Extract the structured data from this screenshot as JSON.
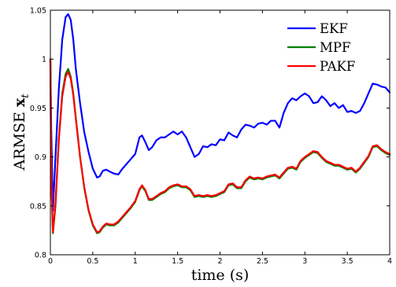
{
  "chart_data": {
    "type": "line",
    "xlabel": "time (s)",
    "ylabel_text": "ARMSE ",
    "ylabel_bold": "x",
    "ylabel_sub": "t",
    "xlim": [
      0,
      4
    ],
    "ylim": [
      0.8,
      1.05
    ],
    "xticks": [
      "0",
      "0.5",
      "1",
      "1.5",
      "2",
      "2.5",
      "3",
      "3.5",
      "4"
    ],
    "xtick_values": [
      0,
      0.5,
      1,
      1.5,
      2,
      2.5,
      3,
      3.5,
      4
    ],
    "yticks": [
      "0.8",
      "0.85",
      "0.9",
      "0.95",
      "1",
      "1.05"
    ],
    "ytick_values": [
      0.8,
      0.85,
      0.9,
      0.95,
      1,
      1.05
    ],
    "grid": false,
    "legend_position": "top-right",
    "series": [
      {
        "name": "EKF",
        "color": "#0000ff",
        "x": [
          0,
          0.01,
          0.03,
          0.06,
          0.1,
          0.14,
          0.18,
          0.21,
          0.24,
          0.27,
          0.3,
          0.35,
          0.4,
          0.45,
          0.5,
          0.55,
          0.58,
          0.62,
          0.66,
          0.7,
          0.75,
          0.8,
          0.85,
          0.9,
          0.95,
          1.0,
          1.05,
          1.08,
          1.12,
          1.16,
          1.2,
          1.25,
          1.3,
          1.35,
          1.4,
          1.45,
          1.5,
          1.55,
          1.6,
          1.65,
          1.7,
          1.75,
          1.8,
          1.85,
          1.9,
          1.95,
          2.0,
          2.05,
          2.1,
          2.15,
          2.2,
          2.25,
          2.3,
          2.35,
          2.4,
          2.45,
          2.5,
          2.55,
          2.6,
          2.65,
          2.7,
          2.75,
          2.8,
          2.85,
          2.9,
          2.95,
          3.0,
          3.05,
          3.1,
          3.15,
          3.2,
          3.25,
          3.3,
          3.35,
          3.4,
          3.45,
          3.5,
          3.55,
          3.6,
          3.65,
          3.7,
          3.75,
          3.8,
          3.85,
          3.9,
          3.95,
          4.0
        ],
        "values": [
          1.0,
          0.93,
          0.845,
          0.9,
          0.97,
          1.02,
          1.043,
          1.046,
          1.04,
          1.02,
          0.99,
          0.955,
          0.925,
          0.905,
          0.888,
          0.879,
          0.88,
          0.886,
          0.887,
          0.885,
          0.883,
          0.882,
          0.888,
          0.893,
          0.898,
          0.903,
          0.92,
          0.922,
          0.915,
          0.907,
          0.91,
          0.917,
          0.92,
          0.92,
          0.923,
          0.926,
          0.923,
          0.926,
          0.92,
          0.91,
          0.9,
          0.903,
          0.911,
          0.91,
          0.913,
          0.912,
          0.918,
          0.917,
          0.925,
          0.922,
          0.92,
          0.928,
          0.933,
          0.932,
          0.93,
          0.934,
          0.935,
          0.933,
          0.937,
          0.937,
          0.93,
          0.945,
          0.955,
          0.96,
          0.958,
          0.962,
          0.965,
          0.962,
          0.955,
          0.956,
          0.962,
          0.958,
          0.952,
          0.955,
          0.95,
          0.953,
          0.946,
          0.947,
          0.945,
          0.947,
          0.955,
          0.965,
          0.975,
          0.974,
          0.972,
          0.971,
          0.966
        ]
      },
      {
        "name": "MPF",
        "color": "#008000",
        "x": [
          0,
          0.01,
          0.03,
          0.06,
          0.1,
          0.14,
          0.18,
          0.21,
          0.24,
          0.27,
          0.3,
          0.35,
          0.4,
          0.45,
          0.5,
          0.55,
          0.58,
          0.62,
          0.66,
          0.7,
          0.75,
          0.8,
          0.85,
          0.9,
          0.95,
          1.0,
          1.05,
          1.08,
          1.12,
          1.16,
          1.2,
          1.25,
          1.3,
          1.35,
          1.4,
          1.45,
          1.5,
          1.55,
          1.6,
          1.65,
          1.7,
          1.75,
          1.8,
          1.85,
          1.9,
          1.95,
          2.0,
          2.05,
          2.1,
          2.15,
          2.2,
          2.25,
          2.3,
          2.35,
          2.4,
          2.45,
          2.5,
          2.55,
          2.6,
          2.65,
          2.7,
          2.75,
          2.8,
          2.85,
          2.9,
          2.95,
          3.0,
          3.05,
          3.1,
          3.15,
          3.2,
          3.25,
          3.3,
          3.35,
          3.4,
          3.45,
          3.5,
          3.55,
          3.6,
          3.65,
          3.7,
          3.75,
          3.8,
          3.85,
          3.9,
          3.95,
          4.0
        ],
        "values": [
          1.0,
          0.88,
          0.822,
          0.85,
          0.92,
          0.965,
          0.985,
          0.99,
          0.982,
          0.965,
          0.94,
          0.9,
          0.868,
          0.845,
          0.83,
          0.822,
          0.823,
          0.828,
          0.831,
          0.83,
          0.83,
          0.833,
          0.838,
          0.843,
          0.848,
          0.854,
          0.866,
          0.87,
          0.865,
          0.856,
          0.856,
          0.859,
          0.862,
          0.864,
          0.868,
          0.87,
          0.871,
          0.869,
          0.869,
          0.866,
          0.859,
          0.86,
          0.859,
          0.86,
          0.859,
          0.86,
          0.862,
          0.864,
          0.871,
          0.872,
          0.868,
          0.868,
          0.875,
          0.879,
          0.877,
          0.878,
          0.877,
          0.879,
          0.88,
          0.881,
          0.878,
          0.883,
          0.888,
          0.889,
          0.887,
          0.895,
          0.899,
          0.902,
          0.905,
          0.904,
          0.899,
          0.895,
          0.893,
          0.891,
          0.891,
          0.889,
          0.887,
          0.888,
          0.884,
          0.888,
          0.894,
          0.9,
          0.91,
          0.911,
          0.907,
          0.904,
          0.902
        ]
      },
      {
        "name": "PAKF",
        "color": "#ff0000",
        "x": [
          0,
          0.01,
          0.03,
          0.06,
          0.1,
          0.14,
          0.18,
          0.21,
          0.24,
          0.27,
          0.3,
          0.35,
          0.4,
          0.45,
          0.5,
          0.55,
          0.58,
          0.62,
          0.66,
          0.7,
          0.75,
          0.8,
          0.85,
          0.9,
          0.95,
          1.0,
          1.05,
          1.08,
          1.12,
          1.16,
          1.2,
          1.25,
          1.3,
          1.35,
          1.4,
          1.45,
          1.5,
          1.55,
          1.6,
          1.65,
          1.7,
          1.75,
          1.8,
          1.85,
          1.9,
          1.95,
          2.0,
          2.05,
          2.1,
          2.15,
          2.2,
          2.25,
          2.3,
          2.35,
          2.4,
          2.45,
          2.5,
          2.55,
          2.6,
          2.65,
          2.7,
          2.75,
          2.8,
          2.85,
          2.9,
          2.95,
          3.0,
          3.05,
          3.1,
          3.15,
          3.2,
          3.25,
          3.3,
          3.35,
          3.4,
          3.45,
          3.5,
          3.55,
          3.6,
          3.65,
          3.7,
          3.75,
          3.8,
          3.85,
          3.9,
          3.95,
          4.0
        ],
        "values": [
          1.0,
          0.88,
          0.823,
          0.852,
          0.918,
          0.962,
          0.982,
          0.987,
          0.98,
          0.963,
          0.939,
          0.9,
          0.869,
          0.846,
          0.831,
          0.823,
          0.824,
          0.829,
          0.832,
          0.831,
          0.831,
          0.834,
          0.839,
          0.844,
          0.849,
          0.855,
          0.867,
          0.871,
          0.866,
          0.857,
          0.857,
          0.86,
          0.863,
          0.865,
          0.869,
          0.871,
          0.872,
          0.87,
          0.87,
          0.867,
          0.86,
          0.861,
          0.86,
          0.861,
          0.86,
          0.861,
          0.863,
          0.865,
          0.872,
          0.873,
          0.869,
          0.869,
          0.876,
          0.88,
          0.878,
          0.879,
          0.878,
          0.88,
          0.881,
          0.882,
          0.879,
          0.884,
          0.889,
          0.89,
          0.888,
          0.896,
          0.9,
          0.903,
          0.906,
          0.905,
          0.9,
          0.896,
          0.894,
          0.892,
          0.892,
          0.89,
          0.888,
          0.889,
          0.885,
          0.889,
          0.895,
          0.901,
          0.911,
          0.912,
          0.908,
          0.905,
          0.903
        ]
      }
    ]
  }
}
